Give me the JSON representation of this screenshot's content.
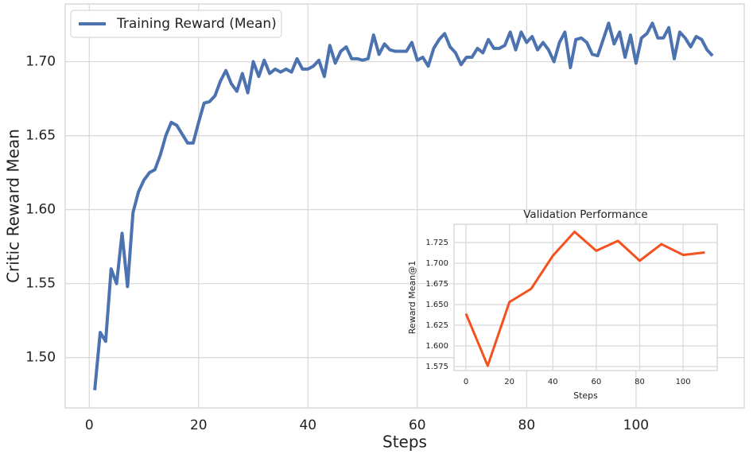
{
  "chart_data": [
    {
      "type": "line",
      "x_label": "Steps",
      "y_label": "Critic Reward Mean",
      "x": [
        1,
        2,
        3,
        4,
        5,
        6,
        7,
        8,
        9,
        10,
        11,
        12,
        13,
        14,
        15,
        16,
        17,
        18,
        19,
        20,
        21,
        22,
        23,
        24,
        25,
        26,
        27,
        28,
        29,
        30,
        31,
        32,
        33,
        34,
        35,
        36,
        37,
        38,
        39,
        40,
        41,
        42,
        43,
        44,
        45,
        46,
        47,
        48,
        49,
        50,
        51,
        52,
        53,
        54,
        55,
        56,
        57,
        58,
        59,
        60,
        61,
        62,
        63,
        64,
        65,
        66,
        67,
        68,
        69,
        70,
        71,
        72,
        73,
        74,
        75,
        76,
        77,
        78,
        79,
        80,
        81,
        82,
        83,
        84,
        85,
        86,
        87,
        88,
        89,
        90,
        91,
        92,
        93,
        94,
        95,
        96,
        97,
        98,
        99,
        100,
        101,
        102,
        103,
        104,
        105,
        106,
        107,
        108,
        109,
        110,
        111,
        112,
        113,
        114
      ],
      "series": [
        {
          "name": "Training Reward (Mean)",
          "color": "#4c72b0",
          "values": [
            1.478,
            1.517,
            1.511,
            1.56,
            1.55,
            1.584,
            1.548,
            1.598,
            1.612,
            1.62,
            1.625,
            1.627,
            1.637,
            1.65,
            1.659,
            1.657,
            1.651,
            1.645,
            1.645,
            1.659,
            1.672,
            1.673,
            1.677,
            1.687,
            1.694,
            1.685,
            1.68,
            1.692,
            1.679,
            1.7,
            1.69,
            1.701,
            1.692,
            1.695,
            1.693,
            1.695,
            1.693,
            1.702,
            1.695,
            1.695,
            1.697,
            1.701,
            1.69,
            1.711,
            1.699,
            1.707,
            1.71,
            1.702,
            1.702,
            1.701,
            1.702,
            1.718,
            1.705,
            1.712,
            1.708,
            1.707,
            1.707,
            1.707,
            1.713,
            1.701,
            1.703,
            1.697,
            1.709,
            1.715,
            1.719,
            1.71,
            1.706,
            1.698,
            1.703,
            1.703,
            1.709,
            1.706,
            1.715,
            1.709,
            1.709,
            1.711,
            1.72,
            1.708,
            1.72,
            1.713,
            1.717,
            1.708,
            1.713,
            1.708,
            1.7,
            1.713,
            1.72,
            1.696,
            1.715,
            1.716,
            1.713,
            1.705,
            1.704,
            1.715,
            1.726,
            1.712,
            1.72,
            1.703,
            1.718,
            1.699,
            1.716,
            1.719,
            1.726,
            1.716,
            1.716,
            1.723,
            1.702,
            1.72,
            1.716,
            1.71,
            1.717,
            1.715,
            1.708,
            1.704
          ]
        }
      ],
      "xlim": [
        -4.4,
        119.8
      ],
      "ylim": [
        1.466,
        1.739
      ],
      "xticks": [
        0,
        20,
        40,
        60,
        80,
        100
      ],
      "yticks": [
        {
          "value": 1.5,
          "label": "1.50"
        },
        1.55,
        {
          "value": 1.6,
          "label": "1.60"
        },
        1.65,
        {
          "value": 1.7,
          "label": "1.70"
        }
      ],
      "grid": true,
      "legend": "upper left"
    },
    {
      "type": "line",
      "title": "Validation Performance",
      "x_label": "Steps",
      "y_label": "Reward Mean@1",
      "x": [
        0,
        10,
        20,
        30,
        40,
        50,
        60,
        70,
        80,
        90,
        100,
        110
      ],
      "series": [
        {
          "color": "#f4511e",
          "values": [
            1.639,
            1.576,
            1.653,
            1.669,
            1.709,
            1.738,
            1.715,
            1.727,
            1.703,
            1.723,
            1.71,
            1.713
          ]
        }
      ],
      "xlim": [
        -5.5,
        115.7
      ],
      "ylim": [
        1.5702,
        1.7471
      ],
      "xticks": [
        0,
        20,
        40,
        60,
        80,
        100
      ],
      "yticks": [
        1.575,
        {
          "value": 1.6,
          "label": "1.600"
        },
        1.625,
        {
          "value": 1.65,
          "label": "1.650"
        },
        1.675,
        {
          "value": 1.7,
          "label": "1.700"
        },
        1.725
      ],
      "grid": true
    }
  ]
}
